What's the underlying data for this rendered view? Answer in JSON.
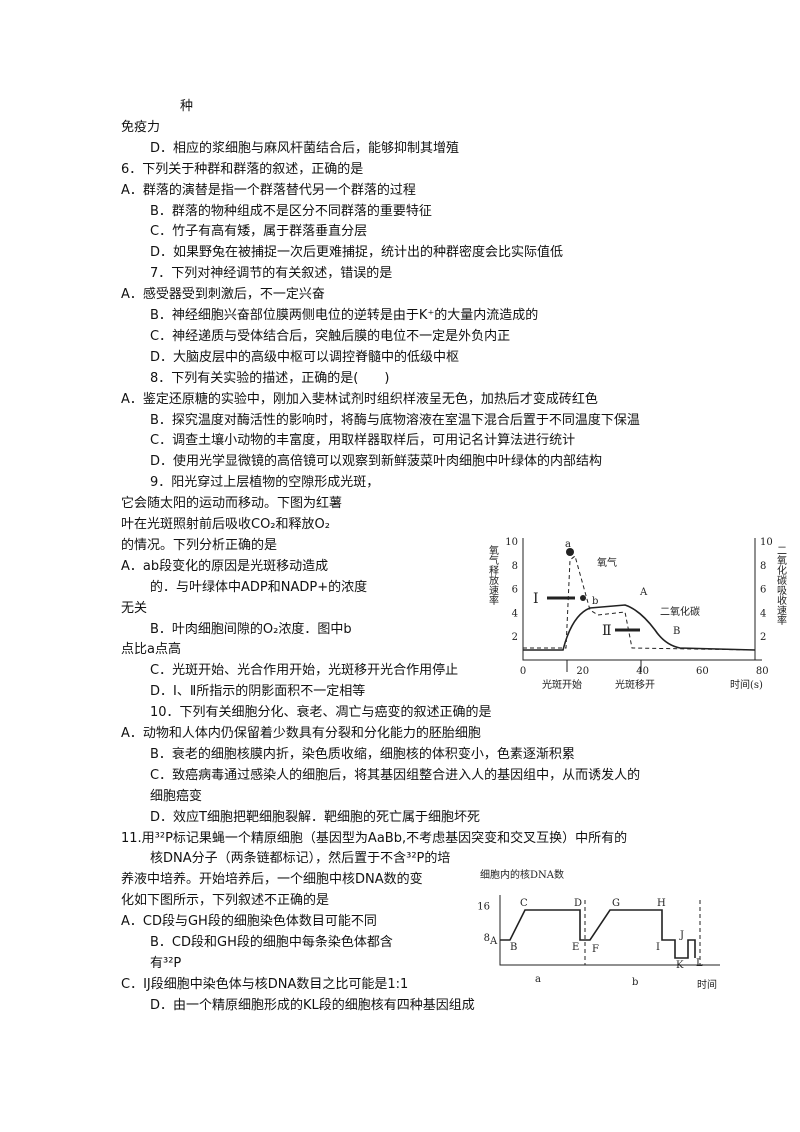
{
  "lines": [
    "种",
    "免疫力",
    "D．相应的浆细胞与麻风杆菌结合后，能够抑制其增殖",
    "6．下列关于种群和群落的叙述，正确的是",
    "A．群落的演替是指一个群落替代另一个群落的过程",
    "B．群落的物种组成不是区分不同群落的重要特征",
    "C．竹子有高有矮，属于群落垂直分层",
    "D．如果野兔在被捕捉一次后更难捕捉，统计出的种群密度会比实际值低",
    "7．下列对神经调节的有关叙述，错误的是",
    "A．感受器受到刺激后，不一定兴奋",
    "B．神经细胞兴奋部位膜两侧电位的逆转是由于K⁺的大量内流造成的",
    "C．神经递质与受体结合后，突触后膜的电位不一定是外负内正",
    "D．大脑皮层中的高级中枢可以调控脊髓中的低级中枢",
    "8．下列有关实验的描述，正确的是(　　)",
    "A．鉴定还原糖的实验中，刚加入斐林试剂时组织样液呈无色，加热后才变成砖红色",
    "B．探究温度对酶活性的影响时，将酶与底物溶液在室温下混合后置于不同温度下保温",
    "C．调查土壤小动物的丰富度，用取样器取样后，可用记名计算法进行统计",
    "D．使用光学显微镜的高倍镜可以观察到新鲜菠菜叶肉细胞中叶绿体的内部结构",
    "9．阳光穿过上层植物的空隙形成光斑，",
    "它会随太阳的运动而移动。下图为红薯",
    "叶在光斑照射前后吸收CO₂和释放O₂",
    "的情况。下列分析正确的是",
    "A．ab段变化的原因是光斑移动造成",
    "的．与叶绿体中ADP和NADP+的浓度",
    "无关",
    "B．叶肉细胞间隙的O₂浓度．图中b",
    "点比a点高",
    "C．光斑开始、光合作用开始，光斑移开光合作用停止",
    "D．Ⅰ、Ⅱ所指示的阴影面积不一定相等",
    "10．下列有关细胞分化、衰老、凋亡与癌变的叙述正确的是",
    "A．动物和人体内仍保留着少数具有分裂和分化能力的胚胎细胞",
    "B．衰老的细胞核膜内折，染色质收缩，细胞核的体积变小，色素逐渐积累",
    "C．致癌病毒通过感染人的细胞后，将其基因组整合进入人的基因组中，从而诱发人的",
    "细胞癌变",
    "D．效应T细胞把靶细胞裂解．靶细胞的死亡属于细胞坏死",
    "11.用³²P标记果蝇一个精原细胞（基因型为AaBb,不考虑基因突变和交叉互换）中所有的",
    "核DNA分子（两条链都标记），然后置于不含³²P的培",
    "养液中培养。开始培养后，一个细胞中核DNA数的变",
    "化如下图所示，下列叙述不正确的是",
    "A．CD段与GH段的细胞染色体数目可能不同",
    "B．CD段和GH段的细胞中每条染色体都含",
    "有³²P",
    "C．IJ段细胞中染色体与核DNA数目之比可能是1:1",
    "D．由一个精原细胞形成的KL段的细胞核有四种基因组成"
  ],
  "figure1": {
    "y_label": "氧气释放速率",
    "y2_label": "二氧化碳吸收速率",
    "yticks": [
      10,
      8,
      6,
      4,
      2
    ],
    "y2ticks": [
      10,
      8,
      6,
      4,
      2
    ],
    "xticks": [
      0,
      20,
      40,
      60,
      80
    ],
    "x_label": "时间(s)",
    "start_label": "光斑开始",
    "end_label": "光斑移开",
    "o2_label": "氧气",
    "co2_label": "二氧化碳",
    "point_a": "a",
    "point_b": "b",
    "point_A": "A",
    "point_B": "B",
    "area_1": "Ⅰ",
    "area_2": "Ⅱ"
  },
  "figure2": {
    "title": "细胞内的核DNA数",
    "yticks": [
      16,
      8
    ],
    "x_label": "时间",
    "segment_a": "a",
    "segment_b": "b",
    "points": [
      "A",
      "B",
      "C",
      "D",
      "E",
      "F",
      "G",
      "H",
      "I",
      "J",
      "K",
      "L"
    ]
  }
}
